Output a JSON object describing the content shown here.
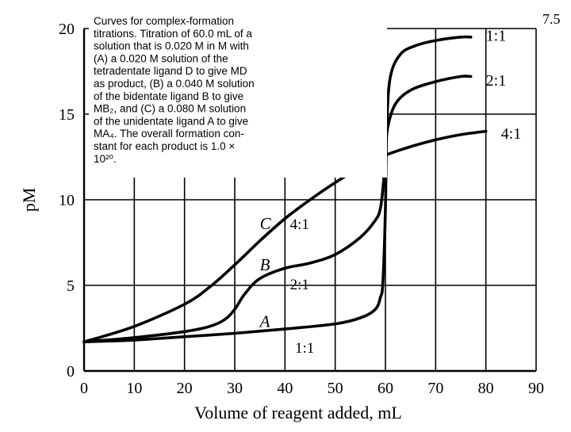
{
  "corner_label": "7.5",
  "chart_data": {
    "type": "line",
    "xlabel": "Volume of reagent added, mL",
    "ylabel": "pM",
    "xlim": [
      0,
      90
    ],
    "ylim": [
      0,
      20
    ],
    "xticks": [
      "0",
      "10",
      "20",
      "30",
      "40",
      "50",
      "60",
      "70",
      "80",
      "90"
    ],
    "yticks": [
      "0",
      "5",
      "10",
      "15",
      "20"
    ],
    "grid": true,
    "caption": [
      "Curves for complex-formation",
      "titrations. Titration of 60.0 mL of a",
      "solution that is 0.020 M in M with",
      "(A) a 0.020 M solution of the",
      "tetradentate ligand D to give MD",
      "as product, (B) a 0.040 M solution",
      "of the bidentate ligand B to give",
      "MB₂, and (C) a 0.080 M solution",
      "of the unidentate ligand A to give",
      "MA₄. The overall formation con-",
      "stant for each product is 1.0 ×",
      "10²⁰."
    ],
    "series": [
      {
        "name": "A",
        "ratio": "1:1",
        "x": [
          0,
          5,
          10,
          20,
          30,
          40,
          50,
          55,
          58,
          59,
          59.5,
          60,
          60.3,
          61,
          63,
          66,
          70,
          75,
          77
        ],
        "y": [
          1.7,
          1.75,
          1.8,
          2.0,
          2.2,
          2.45,
          2.75,
          3.1,
          3.6,
          4.3,
          5.2,
          9.5,
          14.5,
          17.2,
          18.5,
          19.0,
          19.3,
          19.5,
          19.5
        ]
      },
      {
        "name": "B",
        "ratio": "2:1",
        "x": [
          0,
          10,
          20,
          25,
          28,
          30,
          32,
          35,
          40,
          45,
          50,
          55,
          58,
          59,
          59.6,
          60,
          60.5,
          62,
          65,
          70,
          75,
          77
        ],
        "y": [
          1.7,
          1.95,
          2.3,
          2.6,
          3.0,
          3.6,
          4.5,
          5.4,
          6.0,
          6.3,
          6.8,
          7.8,
          8.8,
          9.5,
          11.0,
          12.8,
          14.3,
          15.6,
          16.4,
          16.9,
          17.2,
          17.2
        ]
      },
      {
        "name": "C",
        "ratio": "4:1",
        "x": [
          0,
          10,
          20,
          25,
          30,
          35,
          40,
          45,
          50,
          55,
          60,
          65,
          70,
          75,
          80
        ],
        "y": [
          1.7,
          2.6,
          3.9,
          4.9,
          6.2,
          7.6,
          8.9,
          10.0,
          11.0,
          11.9,
          12.6,
          13.1,
          13.5,
          13.8,
          14.0
        ]
      }
    ],
    "annotations": [
      {
        "text": "C",
        "x": 35,
        "y": 8.6
      },
      {
        "text": "4:1",
        "x": 41,
        "y": 8.6
      },
      {
        "text": "B",
        "x": 35,
        "y": 6.2
      },
      {
        "text": "2:1",
        "x": 41,
        "y": 5.1
      },
      {
        "text": "A",
        "x": 35,
        "y": 2.9
      },
      {
        "text": "1:1",
        "x": 42,
        "y": 1.4
      },
      {
        "text": "1:1",
        "x": 80,
        "y": 19.6
      },
      {
        "text": "2:1",
        "x": 80,
        "y": 17.0
      },
      {
        "text": "4:1",
        "x": 83,
        "y": 13.9
      }
    ]
  }
}
